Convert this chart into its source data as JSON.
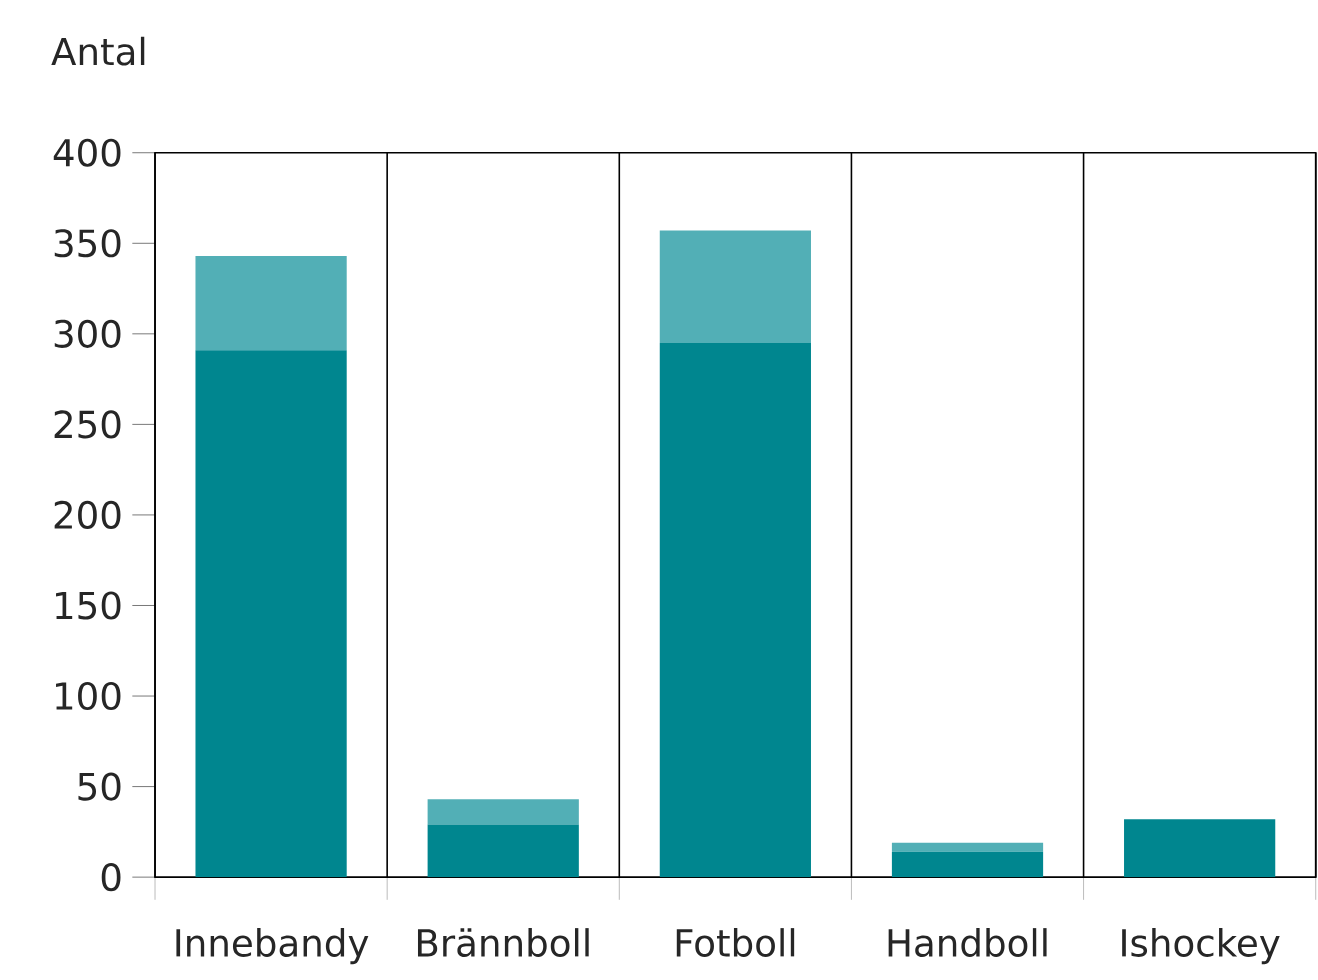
{
  "chart_data": {
    "type": "bar",
    "stacked": true,
    "ylabel": "Antal",
    "categories": [
      "Innebandy",
      "Brännboll",
      "Fotboll",
      "Handboll",
      "Ishockey"
    ],
    "series": [
      {
        "color": "#00868f",
        "values": [
          291,
          29,
          295,
          14,
          32
        ]
      },
      {
        "color": "#52afb6",
        "values": [
          52,
          14,
          62,
          5,
          null
        ]
      }
    ],
    "ylim": [
      0,
      400
    ],
    "yticks": [
      0,
      50,
      100,
      150,
      200,
      250,
      300,
      350,
      400
    ],
    "grid": "x"
  }
}
